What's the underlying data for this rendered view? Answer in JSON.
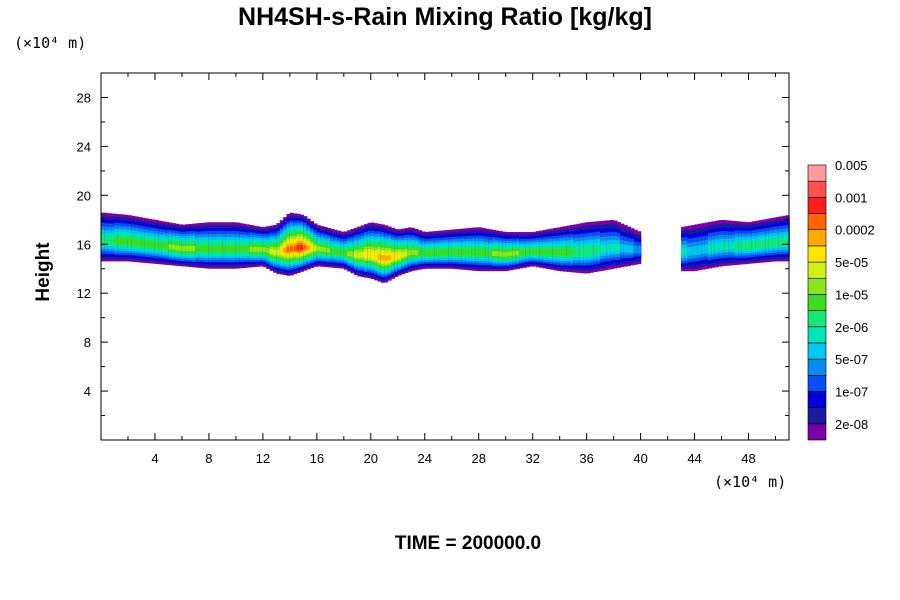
{
  "chart_data": {
    "type": "heatmap",
    "title": "NH4SH-s-Rain Mixing Ratio [kg/kg]",
    "ylabel": "Height",
    "x_unit_label": "(×10⁴ m)",
    "y_unit_label": "(×10⁴ m)",
    "footer": "TIME = 200000.0",
    "xlim": [
      0,
      51
    ],
    "ylim": [
      0,
      30
    ],
    "x_ticks": [
      {
        "value": 4,
        "label": "4"
      },
      {
        "value": 8,
        "label": "8"
      },
      {
        "value": 12,
        "label": "12"
      },
      {
        "value": 16,
        "label": "16"
      },
      {
        "value": 20,
        "label": "20"
      },
      {
        "value": 24,
        "label": "24"
      },
      {
        "value": 28,
        "label": "28"
      },
      {
        "value": 32,
        "label": "32"
      },
      {
        "value": 36,
        "label": "36"
      },
      {
        "value": 40,
        "label": "40"
      },
      {
        "value": 44,
        "label": "44"
      },
      {
        "value": 48,
        "label": "48"
      }
    ],
    "y_ticks": [
      {
        "value": 4,
        "label": "4"
      },
      {
        "value": 8,
        "label": "8"
      },
      {
        "value": 12,
        "label": "12"
      },
      {
        "value": 16,
        "label": "16"
      },
      {
        "value": 20,
        "label": "20"
      },
      {
        "value": 24,
        "label": "24"
      },
      {
        "value": 28,
        "label": "28"
      }
    ],
    "colorbar": {
      "colors": [
        "#7a00a8",
        "#1a1aa0",
        "#0000dc",
        "#0a50f0",
        "#0a8cf0",
        "#00c8ee",
        "#00e6b4",
        "#16e676",
        "#3cdc1e",
        "#8ce61e",
        "#d2f014",
        "#ffe600",
        "#ffaa00",
        "#ff6400",
        "#ff1e1e",
        "#ff5050",
        "#ff9a9a"
      ],
      "labels": [
        "2e-08",
        "1e-07",
        "5e-07",
        "2e-06",
        "1e-05",
        "5e-05",
        "0.0002",
        "0.001",
        "0.005"
      ]
    },
    "field": {
      "description_levels": "integer level index into colorbar.colors (0 = lowest band, -1 = no data)",
      "x_range": [
        0,
        51
      ],
      "band": {
        "columns_x": [
          0,
          2,
          4,
          6,
          8,
          10,
          12,
          13,
          14,
          15,
          16,
          18,
          19,
          20,
          21,
          22,
          23,
          24,
          26,
          28,
          30,
          32,
          34,
          36,
          38,
          40,
          40.5,
          42,
          43,
          44,
          46,
          48,
          50,
          51
        ],
        "top": [
          18.6,
          18.4,
          18.0,
          17.6,
          17.8,
          17.8,
          17.4,
          17.6,
          18.6,
          18.4,
          17.6,
          17.0,
          17.4,
          17.8,
          17.6,
          17.2,
          17.4,
          17.0,
          17.2,
          17.4,
          17.0,
          17.0,
          17.4,
          17.8,
          18.0,
          17.0,
          null,
          null,
          17.4,
          17.6,
          18.0,
          17.8,
          18.2,
          18.4
        ],
        "bottom": [
          14.6,
          14.6,
          14.4,
          14.2,
          14.0,
          14.0,
          14.2,
          13.6,
          13.4,
          13.8,
          14.2,
          14.0,
          13.4,
          13.2,
          12.8,
          13.4,
          13.8,
          14.0,
          14.0,
          13.8,
          13.8,
          14.2,
          13.8,
          13.6,
          14.0,
          14.4,
          null,
          null,
          13.8,
          13.8,
          14.2,
          14.4,
          14.6,
          14.6
        ],
        "peak_level": [
          7,
          8,
          8,
          9,
          8,
          8,
          9,
          10,
          13,
          14,
          9,
          8,
          10,
          11,
          12,
          11,
          9,
          8,
          8,
          8,
          9,
          8,
          8,
          7,
          6,
          4,
          null,
          null,
          6,
          5,
          6,
          7,
          7,
          7
        ]
      }
    }
  }
}
